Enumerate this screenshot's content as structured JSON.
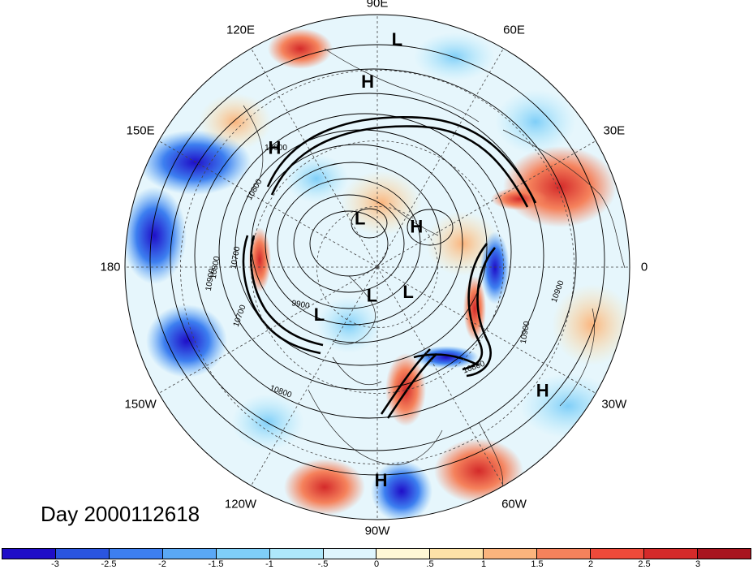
{
  "title": "Day 2000112618",
  "longitude_labels": [
    {
      "text": "90E",
      "deg": 90
    },
    {
      "text": "60E",
      "deg": 60
    },
    {
      "text": "30E",
      "deg": 30
    },
    {
      "text": "0",
      "deg": 0
    },
    {
      "text": "30W",
      "deg": -30
    },
    {
      "text": "60W",
      "deg": -60
    },
    {
      "text": "90W",
      "deg": -90
    },
    {
      "text": "120W",
      "deg": -120
    },
    {
      "text": "150W",
      "deg": -150
    },
    {
      "text": "180",
      "deg": 180
    },
    {
      "text": "150E",
      "deg": 150
    },
    {
      "text": "120E",
      "deg": 120
    }
  ],
  "pressure_centers": [
    {
      "type": "L",
      "lon": 85,
      "r": 0.9
    },
    {
      "type": "H",
      "lon": 93,
      "r": 0.73
    },
    {
      "type": "H",
      "lon": 131,
      "r": 0.62
    },
    {
      "type": "L",
      "lon": 110,
      "r": 0.2
    },
    {
      "type": "H",
      "lon": 45,
      "r": 0.22
    },
    {
      "type": "L",
      "lon": -140,
      "r": 0.3
    },
    {
      "type": "L",
      "lon": -100,
      "r": 0.12
    },
    {
      "type": "L",
      "lon": -40,
      "r": 0.16
    },
    {
      "type": "H",
      "lon": -37,
      "r": 0.82
    },
    {
      "type": "H",
      "lon": -89,
      "r": 0.85
    }
  ],
  "contour_labels": [
    "10900",
    "10800",
    "10700",
    "10800",
    "10900",
    "9900",
    "10700",
    "10800",
    "10900",
    "10900",
    "10800"
  ],
  "colorbar": {
    "colors": [
      "#1f0ec8",
      "#2a55e0",
      "#3d7ff0",
      "#5aa8f5",
      "#7fcef8",
      "#aee8fb",
      "#dff5fd",
      "#fff7d6",
      "#fde2a8",
      "#fbb47d",
      "#f5825c",
      "#ee4a3a",
      "#d42a2a",
      "#a8141f"
    ],
    "labels": [
      "-3",
      "-2.5",
      "-2",
      "-1.5",
      "-1",
      "-.5",
      "0",
      ".5",
      "1",
      "1.5",
      "2",
      "2.5",
      "3"
    ]
  }
}
